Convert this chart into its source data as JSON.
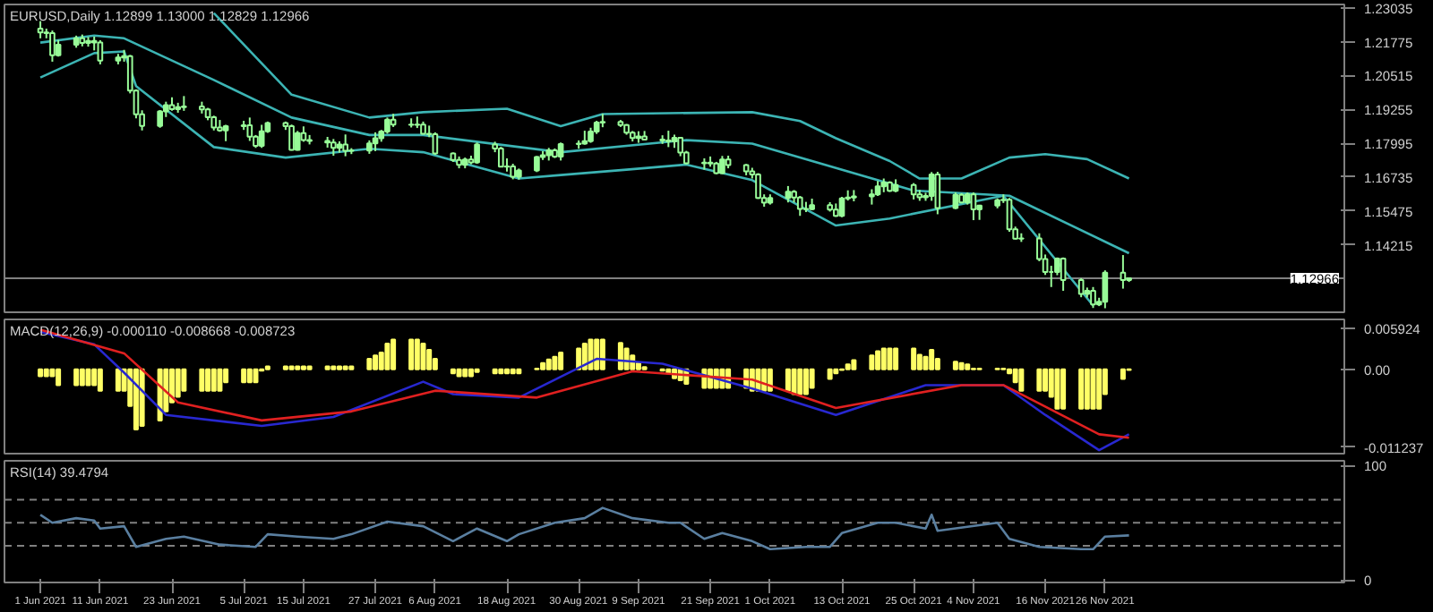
{
  "chart_data": [
    {
      "type": "candlestick",
      "title": "EURUSD,Daily 1.12899 1.13000 1.12829 1.12966",
      "color": "#98fb98",
      "xlim": [
        "2021-05-26",
        "2022-01-05"
      ],
      "ylim": [
        1.117,
        1.2316
      ],
      "yticks": [
        1.23035,
        1.21775,
        1.20515,
        1.19255,
        1.17995,
        1.16735,
        1.15475,
        1.14215
      ],
      "tick_labels": "y",
      "ref_lines": [
        {
          "axis": "y",
          "value": 1.12966,
          "label": "1.12966",
          "color": "#808080"
        }
      ],
      "x": [
        "2021-06-01",
        "2021-06-02",
        "2021-06-03",
        "2021-06-04",
        "2021-06-07",
        "2021-06-08",
        "2021-06-09",
        "2021-06-10",
        "2021-06-11",
        "2021-06-14",
        "2021-06-15",
        "2021-06-16",
        "2021-06-17",
        "2021-06-18",
        "2021-06-21",
        "2021-06-22",
        "2021-06-23",
        "2021-06-24",
        "2021-06-25",
        "2021-06-28",
        "2021-06-29",
        "2021-06-30",
        "2021-07-01",
        "2021-07-02",
        "2021-07-05",
        "2021-07-06",
        "2021-07-07",
        "2021-07-08",
        "2021-07-09",
        "2021-07-12",
        "2021-07-13",
        "2021-07-14",
        "2021-07-15",
        "2021-07-16",
        "2021-07-19",
        "2021-07-20",
        "2021-07-21",
        "2021-07-22",
        "2021-07-23",
        "2021-07-26",
        "2021-07-27",
        "2021-07-28",
        "2021-07-29",
        "2021-07-30",
        "2021-08-02",
        "2021-08-03",
        "2021-08-04",
        "2021-08-05",
        "2021-08-06",
        "2021-08-09",
        "2021-08-10",
        "2021-08-11",
        "2021-08-12",
        "2021-08-13",
        "2021-08-16",
        "2021-08-17",
        "2021-08-18",
        "2021-08-19",
        "2021-08-20",
        "2021-08-23",
        "2021-08-24",
        "2021-08-25",
        "2021-08-26",
        "2021-08-27",
        "2021-08-30",
        "2021-08-31",
        "2021-09-01",
        "2021-09-02",
        "2021-09-03",
        "2021-09-06",
        "2021-09-07",
        "2021-09-08",
        "2021-09-09",
        "2021-09-10",
        "2021-09-13",
        "2021-09-14",
        "2021-09-15",
        "2021-09-16",
        "2021-09-17",
        "2021-09-20",
        "2021-09-21",
        "2021-09-22",
        "2021-09-23",
        "2021-09-24",
        "2021-09-27",
        "2021-09-28",
        "2021-09-29",
        "2021-09-30",
        "2021-10-01",
        "2021-10-04",
        "2021-10-05",
        "2021-10-06",
        "2021-10-07",
        "2021-10-08",
        "2021-10-11",
        "2021-10-12",
        "2021-10-13",
        "2021-10-14",
        "2021-10-15",
        "2021-10-18",
        "2021-10-19",
        "2021-10-20",
        "2021-10-21",
        "2021-10-22",
        "2021-10-25",
        "2021-10-26",
        "2021-10-27",
        "2021-10-28",
        "2021-10-29",
        "2021-11-01",
        "2021-11-02",
        "2021-11-03",
        "2021-11-04",
        "2021-11-05",
        "2021-11-08",
        "2021-11-09",
        "2021-11-10",
        "2021-11-11",
        "2021-11-12",
        "2021-11-15",
        "2021-11-16",
        "2021-11-17",
        "2021-11-18",
        "2021-11-19",
        "2021-11-22",
        "2021-11-23",
        "2021-11-24",
        "2021-11-25",
        "2021-11-26",
        "2021-11-29",
        "2021-11-30"
      ],
      "ohlc": [
        [
          1.2226,
          1.2254,
          1.219,
          1.2212
        ],
        [
          1.2212,
          1.2226,
          1.219,
          1.2209
        ],
        [
          1.2209,
          1.2219,
          1.2103,
          1.2127
        ],
        [
          1.2127,
          1.2184,
          1.2122,
          1.2166
        ],
        [
          1.2166,
          1.22,
          1.2155,
          1.219
        ],
        [
          1.219,
          1.2204,
          1.216,
          1.2173
        ],
        [
          1.2173,
          1.2195,
          1.2159,
          1.218
        ],
        [
          1.218,
          1.2196,
          1.2145,
          1.2174
        ],
        [
          1.2174,
          1.2183,
          1.2093,
          1.2107
        ],
        [
          1.2107,
          1.2132,
          1.2093,
          1.2119
        ],
        [
          1.2119,
          1.2147,
          1.2103,
          1.2124
        ],
        [
          1.2124,
          1.2128,
          1.1985,
          1.1995
        ],
        [
          1.1995,
          1.2,
          1.1892,
          1.1907
        ],
        [
          1.1907,
          1.1922,
          1.1847,
          1.1864
        ],
        [
          1.1864,
          1.1923,
          1.1857,
          1.1918
        ],
        [
          1.1918,
          1.1954,
          1.1897,
          1.1941
        ],
        [
          1.1941,
          1.197,
          1.192,
          1.1926
        ],
        [
          1.1926,
          1.195,
          1.1913,
          1.1934
        ],
        [
          1.1934,
          1.1975,
          1.192,
          1.1936
        ],
        [
          1.1936,
          1.1954,
          1.191,
          1.1925
        ],
        [
          1.1925,
          1.1931,
          1.1885,
          1.1896
        ],
        [
          1.1896,
          1.1902,
          1.1847,
          1.1858
        ],
        [
          1.1858,
          1.1886,
          1.1842,
          1.1847
        ],
        [
          1.1847,
          1.1868,
          1.1807,
          1.1863
        ],
        [
          1.1863,
          1.1883,
          1.1849,
          1.1866
        ],
        [
          1.1866,
          1.1895,
          1.1808,
          1.1824
        ],
        [
          1.1824,
          1.183,
          1.1782,
          1.179
        ],
        [
          1.179,
          1.1868,
          1.1782,
          1.1844
        ],
        [
          1.1844,
          1.188,
          1.1838,
          1.1875
        ],
        [
          1.1875,
          1.188,
          1.1849,
          1.1863
        ],
        [
          1.1863,
          1.1869,
          1.1772,
          1.1775
        ],
        [
          1.1775,
          1.1845,
          1.1772,
          1.1837
        ],
        [
          1.1837,
          1.1862,
          1.1805,
          1.1811
        ],
        [
          1.1811,
          1.183,
          1.1795,
          1.1808
        ],
        [
          1.1808,
          1.1823,
          1.1783,
          1.1802
        ],
        [
          1.1802,
          1.1815,
          1.1753,
          1.1782
        ],
        [
          1.1782,
          1.1806,
          1.1765,
          1.1795
        ],
        [
          1.1795,
          1.1832,
          1.1751,
          1.1771
        ],
        [
          1.1771,
          1.1781,
          1.1759,
          1.1772
        ],
        [
          1.1772,
          1.181,
          1.176,
          1.1799
        ],
        [
          1.1799,
          1.184,
          1.177,
          1.1818
        ],
        [
          1.1818,
          1.1849,
          1.1805,
          1.1843
        ],
        [
          1.1843,
          1.1895,
          1.1835,
          1.1887
        ],
        [
          1.1887,
          1.1909,
          1.186,
          1.1869
        ],
        [
          1.1869,
          1.1892,
          1.1858,
          1.1868
        ],
        [
          1.1868,
          1.1899,
          1.1856,
          1.1869
        ],
        [
          1.1869,
          1.188,
          1.1832,
          1.1835
        ],
        [
          1.1835,
          1.1865,
          1.1822,
          1.1833
        ],
        [
          1.1833,
          1.184,
          1.1756,
          1.1761
        ],
        [
          1.1761,
          1.1765,
          1.173,
          1.1737
        ],
        [
          1.1737,
          1.175,
          1.1706,
          1.1719
        ],
        [
          1.1719,
          1.1746,
          1.1706,
          1.1739
        ],
        [
          1.1739,
          1.1753,
          1.1721,
          1.1728
        ],
        [
          1.1728,
          1.1802,
          1.1723,
          1.1795
        ],
        [
          1.1795,
          1.1805,
          1.1766,
          1.178
        ],
        [
          1.178,
          1.1786,
          1.171,
          1.1712
        ],
        [
          1.1712,
          1.1743,
          1.1694,
          1.1713
        ],
        [
          1.1713,
          1.1723,
          1.1665,
          1.1675
        ],
        [
          1.1675,
          1.1705,
          1.1664,
          1.1698
        ],
        [
          1.1698,
          1.1752,
          1.1692,
          1.1748
        ],
        [
          1.1748,
          1.177,
          1.1737,
          1.1755
        ],
        [
          1.1755,
          1.1782,
          1.1735,
          1.1773
        ],
        [
          1.1773,
          1.178,
          1.1744,
          1.175
        ],
        [
          1.175,
          1.1802,
          1.1735,
          1.1796
        ],
        [
          1.1796,
          1.181,
          1.1779,
          1.1798
        ],
        [
          1.1798,
          1.1846,
          1.1794,
          1.1807
        ],
        [
          1.1807,
          1.1857,
          1.1801,
          1.1843
        ],
        [
          1.1843,
          1.1883,
          1.1834,
          1.1876
        ],
        [
          1.1876,
          1.1909,
          1.1859,
          1.1879
        ],
        [
          1.1879,
          1.1886,
          1.186,
          1.1867
        ],
        [
          1.1867,
          1.1871,
          1.1831,
          1.1839
        ],
        [
          1.1839,
          1.1845,
          1.1806,
          1.1819
        ],
        [
          1.1819,
          1.1844,
          1.1801,
          1.1825
        ],
        [
          1.1825,
          1.1845,
          1.181,
          1.1813
        ],
        [
          1.1813,
          1.1829,
          1.1797,
          1.181
        ],
        [
          1.181,
          1.1846,
          1.1785,
          1.1806
        ],
        [
          1.1806,
          1.1831,
          1.1782,
          1.182
        ],
        [
          1.182,
          1.1823,
          1.1751,
          1.1765
        ],
        [
          1.1765,
          1.1771,
          1.1721,
          1.1725
        ],
        [
          1.1725,
          1.1743,
          1.1701,
          1.1727
        ],
        [
          1.1727,
          1.175,
          1.1712,
          1.1724
        ],
        [
          1.1724,
          1.173,
          1.1684,
          1.1688
        ],
        [
          1.1688,
          1.1752,
          1.1685,
          1.1739
        ],
        [
          1.1739,
          1.1753,
          1.1706,
          1.1718
        ],
        [
          1.1718,
          1.1722,
          1.168,
          1.1695
        ],
        [
          1.1695,
          1.1708,
          1.1668,
          1.1683
        ],
        [
          1.1683,
          1.1688,
          1.1592,
          1.1596
        ],
        [
          1.1596,
          1.1609,
          1.1563,
          1.1578
        ],
        [
          1.1578,
          1.1609,
          1.1571,
          1.1596
        ],
        [
          1.1596,
          1.164,
          1.1579,
          1.1619
        ],
        [
          1.1619,
          1.1625,
          1.1579,
          1.1597
        ],
        [
          1.1597,
          1.1603,
          1.1529,
          1.1555
        ],
        [
          1.1555,
          1.1581,
          1.1543,
          1.1554
        ],
        [
          1.1554,
          1.1593,
          1.155,
          1.1569
        ],
        [
          1.1569,
          1.158,
          1.1545,
          1.1552
        ],
        [
          1.1552,
          1.1575,
          1.1525,
          1.1529
        ],
        [
          1.1529,
          1.16,
          1.1524,
          1.1594
        ],
        [
          1.1594,
          1.1624,
          1.1586,
          1.1597
        ],
        [
          1.1597,
          1.1625,
          1.1583,
          1.1601
        ],
        [
          1.1601,
          1.1628,
          1.1571,
          1.1609
        ],
        [
          1.1609,
          1.1659,
          1.1603,
          1.1639
        ],
        [
          1.1639,
          1.1668,
          1.1617,
          1.1653
        ],
        [
          1.1653,
          1.1658,
          1.1618,
          1.1622
        ],
        [
          1.1622,
          1.1665,
          1.1617,
          1.1644
        ],
        [
          1.1644,
          1.1651,
          1.159,
          1.1609
        ],
        [
          1.1609,
          1.1625,
          1.1585,
          1.1598
        ],
        [
          1.1598,
          1.1615,
          1.1585,
          1.1603
        ],
        [
          1.1603,
          1.1692,
          1.1585,
          1.1683
        ],
        [
          1.1683,
          1.1693,
          1.1535,
          1.1558
        ],
        [
          1.1558,
          1.1616,
          1.1554,
          1.1607
        ],
        [
          1.1607,
          1.1613,
          1.1576,
          1.1579
        ],
        [
          1.1579,
          1.1616,
          1.1571,
          1.1609
        ],
        [
          1.1609,
          1.1616,
          1.1513,
          1.1553
        ],
        [
          1.1553,
          1.157,
          1.1514,
          1.1567
        ],
        [
          1.1567,
          1.1594,
          1.1557,
          1.1587
        ],
        [
          1.1587,
          1.1609,
          1.1577,
          1.1589
        ],
        [
          1.1589,
          1.1596,
          1.147,
          1.1479
        ],
        [
          1.1479,
          1.1489,
          1.1441,
          1.1444
        ],
        [
          1.1444,
          1.1464,
          1.1432,
          1.1445
        ],
        [
          1.1445,
          1.1464,
          1.136,
          1.1368
        ],
        [
          1.1368,
          1.1385,
          1.1309,
          1.132
        ],
        [
          1.132,
          1.1343,
          1.1264,
          1.132
        ],
        [
          1.132,
          1.1374,
          1.1308,
          1.137
        ],
        [
          1.137,
          1.1374,
          1.125,
          1.129
        ],
        [
          1.129,
          1.1297,
          1.1226,
          1.1238
        ],
        [
          1.1238,
          1.1262,
          1.1225,
          1.125
        ],
        [
          1.125,
          1.1264,
          1.1186,
          1.1199
        ],
        [
          1.1199,
          1.1224,
          1.1193,
          1.1209
        ],
        [
          1.1209,
          1.1326,
          1.1185,
          1.1317
        ],
        [
          1.1317,
          1.1383,
          1.1258,
          1.129
        ],
        [
          1.12899,
          1.13,
          1.12829,
          1.12966
        ]
      ],
      "series": [
        {
          "type": "line",
          "color": "#3cb4b4",
          "x": [
            "2021-06-30",
            "2021-07-13",
            "2021-07-26",
            "2021-08-04",
            "2021-08-18",
            "2021-08-27",
            "2021-09-03",
            "2021-09-28",
            "2021-10-06",
            "2021-10-12",
            "2021-10-21",
            "2021-10-26",
            "2021-11-02",
            "2021-11-10",
            "2021-11-16",
            "2021-11-23",
            "2021-11-30"
          ],
          "values": [
            1.2284,
            1.198,
            1.1895,
            1.1915,
            1.1928,
            1.1863,
            1.1908,
            1.1915,
            1.1882,
            1.1818,
            1.1733,
            1.1668,
            1.1668,
            1.1746,
            1.1759,
            1.174,
            1.1668
          ]
        },
        {
          "type": "line",
          "color": "#3cb4b4",
          "x": [
            "2021-06-01",
            "2021-06-10",
            "2021-06-15",
            "2021-06-30",
            "2021-07-13",
            "2021-07-26",
            "2021-08-04",
            "2021-08-27",
            "2021-09-17",
            "2021-09-28",
            "2021-10-25",
            "2021-11-10",
            "2021-11-30"
          ],
          "values": [
            1.2174,
            1.22,
            1.219,
            1.2035,
            1.1895,
            1.183,
            1.183,
            1.1766,
            1.1811,
            1.1798,
            1.1623,
            1.1604,
            1.139
          ]
        },
        {
          "type": "line",
          "color": "#3cb4b4",
          "x": [
            "2021-06-01",
            "2021-06-10",
            "2021-06-15",
            "2021-06-17",
            "2021-06-30",
            "2021-07-12",
            "2021-07-26",
            "2021-08-04",
            "2021-08-20",
            "2021-08-27",
            "2021-09-07",
            "2021-09-17",
            "2021-09-28",
            "2021-10-12",
            "2021-10-21",
            "2021-11-09",
            "2021-11-24"
          ],
          "values": [
            1.2044,
            1.2135,
            1.2141,
            1.2012,
            1.1785,
            1.1746,
            1.1779,
            1.1766,
            1.1668,
            1.1681,
            1.1701,
            1.172,
            1.1662,
            1.1493,
            1.1519,
            1.1604,
            1.1195
          ]
        }
      ]
    },
    {
      "type": "bar",
      "title": "MACD(12,26,9) -0.000110 -0.008668 -0.008723",
      "xlim": [
        "2021-05-26",
        "2022-01-05"
      ],
      "ylim": [
        -0.0122,
        0.0072
      ],
      "yticks": [
        0.005924,
        {
          "value": 0,
          "label": "0.00"
        },
        -0.011237
      ],
      "tick_labels": "y",
      "x": [
        "2021-06-01",
        "2021-06-02",
        "2021-06-03",
        "2021-06-04",
        "2021-06-07",
        "2021-06-08",
        "2021-06-09",
        "2021-06-10",
        "2021-06-11",
        "2021-06-14",
        "2021-06-15",
        "2021-06-16",
        "2021-06-17",
        "2021-06-18",
        "2021-06-21",
        "2021-06-22",
        "2021-06-23",
        "2021-06-24",
        "2021-06-25",
        "2021-06-28",
        "2021-06-29",
        "2021-06-30",
        "2021-07-01",
        "2021-07-02",
        "2021-07-05",
        "2021-07-06",
        "2021-07-07",
        "2021-07-08",
        "2021-07-09",
        "2021-07-12",
        "2021-07-13",
        "2021-07-14",
        "2021-07-15",
        "2021-07-16",
        "2021-07-19",
        "2021-07-20",
        "2021-07-21",
        "2021-07-22",
        "2021-07-23",
        "2021-07-26",
        "2021-07-27",
        "2021-07-28",
        "2021-07-29",
        "2021-07-30",
        "2021-08-02",
        "2021-08-03",
        "2021-08-04",
        "2021-08-05",
        "2021-08-06",
        "2021-08-09",
        "2021-08-10",
        "2021-08-11",
        "2021-08-12",
        "2021-08-13",
        "2021-08-16",
        "2021-08-17",
        "2021-08-18",
        "2021-08-19",
        "2021-08-20",
        "2021-08-23",
        "2021-08-24",
        "2021-08-25",
        "2021-08-26",
        "2021-08-27",
        "2021-08-30",
        "2021-08-31",
        "2021-09-01",
        "2021-09-02",
        "2021-09-03",
        "2021-09-06",
        "2021-09-07",
        "2021-09-08",
        "2021-09-09",
        "2021-09-10",
        "2021-09-13",
        "2021-09-14",
        "2021-09-15",
        "2021-09-16",
        "2021-09-17",
        "2021-09-20",
        "2021-09-21",
        "2021-09-22",
        "2021-09-23",
        "2021-09-24",
        "2021-09-27",
        "2021-09-28",
        "2021-09-29",
        "2021-09-30",
        "2021-10-01",
        "2021-10-04",
        "2021-10-05",
        "2021-10-06",
        "2021-10-07",
        "2021-10-08",
        "2021-10-11",
        "2021-10-12",
        "2021-10-13",
        "2021-10-14",
        "2021-10-15",
        "2021-10-18",
        "2021-10-19",
        "2021-10-20",
        "2021-10-21",
        "2021-10-22",
        "2021-10-25",
        "2021-10-26",
        "2021-10-27",
        "2021-10-28",
        "2021-10-29",
        "2021-11-01",
        "2021-11-02",
        "2021-11-03",
        "2021-11-04",
        "2021-11-05",
        "2021-11-08",
        "2021-11-09",
        "2021-11-10",
        "2021-11-11",
        "2021-11-12",
        "2021-11-15",
        "2021-11-16",
        "2021-11-17",
        "2021-11-18",
        "2021-11-19",
        "2021-11-22",
        "2021-11-23",
        "2021-11-24",
        "2021-11-25",
        "2021-11-26",
        "2021-11-29",
        "2021-11-30"
      ],
      "series": [
        {
          "type": "bar",
          "color": "#ffff66",
          "values": [
            -0.001,
            -0.001,
            -0.001,
            -0.0023,
            -0.0023,
            -0.0023,
            -0.0023,
            -0.0023,
            -0.0031,
            -0.0031,
            -0.0031,
            -0.0053,
            -0.0087,
            -0.0082,
            -0.0074,
            -0.0061,
            -0.0048,
            -0.004,
            -0.0031,
            -0.0031,
            -0.0031,
            -0.0031,
            -0.0031,
            -0.0019,
            -0.0019,
            -0.0019,
            -0.0019,
            -0.0002,
            0.0004,
            0.0004,
            0.0004,
            0.0004,
            0.0004,
            0.0004,
            0.0004,
            0.0004,
            0.0004,
            0.0004,
            0.0004,
            0.0015,
            0.002,
            0.0024,
            0.0037,
            0.0043,
            0.0043,
            0.0043,
            0.0037,
            0.0028,
            0.0015,
            -0.0006,
            -0.001,
            -0.001,
            -0.001,
            -0.0004,
            -0.0006,
            -0.0006,
            -0.0006,
            -0.0006,
            -0.0006,
            0.0001,
            0.0009,
            0.0014,
            0.0018,
            0.0024,
            0.003,
            0.0037,
            0.0043,
            0.0043,
            0.0043,
            0.0038,
            0.003,
            0.002,
            0.0009,
            0.0003,
            -0.0002,
            -0.0006,
            -0.0013,
            -0.0016,
            -0.0021,
            -0.0027,
            -0.0027,
            -0.0027,
            -0.0027,
            -0.0027,
            -0.0027,
            -0.0031,
            -0.0031,
            -0.0031,
            -0.0031,
            -0.0031,
            -0.0036,
            -0.0036,
            -0.0036,
            -0.0027,
            -0.0014,
            -0.0006,
            -0.0001,
            0.0007,
            0.0013,
            0.002,
            0.0026,
            0.003,
            0.003,
            0.003,
            0.003,
            0.0021,
            0.0018,
            0.0028,
            0.0015,
            0.0011,
            0.0009,
            0.0007,
            0.0001,
            0.0001,
            0.0001,
            0.0001,
            -0.0006,
            -0.0019,
            -0.0031,
            -0.0031,
            -0.0031,
            -0.004,
            -0.0057,
            -0.0057,
            -0.0057,
            -0.0057,
            -0.0057,
            -0.0057,
            -0.0036,
            -0.0014,
            -0.0001
          ]
        },
        {
          "type": "line",
          "color": "#2828d0",
          "x": [
            "2021-06-01",
            "2021-06-10",
            "2021-06-15",
            "2021-06-22",
            "2021-07-08",
            "2021-07-20",
            "2021-08-04",
            "2021-08-09",
            "2021-08-20",
            "2021-09-02",
            "2021-09-13",
            "2021-09-28",
            "2021-10-12",
            "2021-10-27",
            "2021-11-09",
            "2021-11-16",
            "2021-11-25",
            "2021-11-30"
          ],
          "values": [
            0.0054,
            0.0036,
            -0.0005,
            -0.0066,
            -0.0082,
            -0.0069,
            -0.0018,
            -0.0036,
            -0.0041,
            0.0015,
            0.0008,
            -0.0028,
            -0.0066,
            -0.0023,
            -0.0023,
            -0.0066,
            -0.0117,
            -0.0094
          ]
        },
        {
          "type": "line",
          "color": "#e02020",
          "x": [
            "2021-06-01",
            "2021-06-15",
            "2021-06-24",
            "2021-07-08",
            "2021-07-23",
            "2021-08-06",
            "2021-08-23",
            "2021-09-08",
            "2021-09-28",
            "2021-10-12",
            "2021-11-02",
            "2021-11-09",
            "2021-11-25",
            "2021-11-30"
          ],
          "values": [
            0.0057,
            0.0023,
            -0.0048,
            -0.0074,
            -0.0061,
            -0.0031,
            -0.0041,
            -0.0003,
            -0.0015,
            -0.0056,
            -0.0023,
            -0.0023,
            -0.0094,
            -0.0099
          ]
        }
      ]
    },
    {
      "type": "line",
      "title": "RSI(14) 39.4794",
      "xlim": [
        "2021-05-26",
        "2022-01-05"
      ],
      "ylim": [
        -2,
        104
      ],
      "yticks": [
        0,
        100
      ],
      "xticks": [
        {
          "value": "2021-06-01",
          "label": "1 Jun 2021"
        },
        {
          "value": "2021-06-11",
          "label": "11 Jun 2021"
        },
        {
          "value": "2021-06-23",
          "label": "23 Jun 2021"
        },
        {
          "value": "2021-07-05",
          "label": "5 Jul 2021"
        },
        {
          "value": "2021-07-15",
          "label": "15 Jul 2021"
        },
        {
          "value": "2021-07-27",
          "label": "27 Jul 2021"
        },
        {
          "value": "2021-08-06",
          "label": "6 Aug 2021"
        },
        {
          "value": "2021-08-18",
          "label": "18 Aug 2021"
        },
        {
          "value": "2021-08-30",
          "label": "30 Aug 2021"
        },
        {
          "value": "2021-09-09",
          "label": "9 Sep 2021"
        },
        {
          "value": "2021-09-21",
          "label": "21 Sep 2021"
        },
        {
          "value": "2021-10-01",
          "label": "1 Oct 2021"
        },
        {
          "value": "2021-10-13",
          "label": "13 Oct 2021"
        },
        {
          "value": "2021-10-25",
          "label": "25 Oct 2021"
        },
        {
          "value": "2021-11-04",
          "label": "4 Nov 2021"
        },
        {
          "value": "2021-11-16",
          "label": "16 Nov 2021"
        },
        {
          "value": "2021-11-26",
          "label": "26 Nov 2021"
        }
      ],
      "ref_lines": [
        {
          "axis": "y",
          "value": 70,
          "color": "#808080",
          "line_style": "dashed"
        },
        {
          "axis": "y",
          "value": 50,
          "color": "#808080",
          "line_style": "dashed"
        },
        {
          "axis": "y",
          "value": 30,
          "color": "#808080",
          "line_style": "dashed"
        }
      ],
      "series": [
        {
          "color": "#5a7fa0",
          "x": [
            "2021-06-01",
            "2021-06-03",
            "2021-06-07",
            "2021-06-10",
            "2021-06-11",
            "2021-06-15",
            "2021-06-17",
            "2021-06-22",
            "2021-06-25",
            "2021-07-01",
            "2021-07-07",
            "2021-07-09",
            "2021-07-14",
            "2021-07-20",
            "2021-07-23",
            "2021-07-29",
            "2021-08-04",
            "2021-08-09",
            "2021-08-13",
            "2021-08-18",
            "2021-08-20",
            "2021-08-26",
            "2021-08-31",
            "2021-09-03",
            "2021-09-08",
            "2021-09-14",
            "2021-09-16",
            "2021-09-20",
            "2021-09-23",
            "2021-09-28",
            "2021-10-01",
            "2021-10-07",
            "2021-10-11",
            "2021-10-13",
            "2021-10-19",
            "2021-10-22",
            "2021-10-27",
            "2021-10-28",
            "2021-10-29",
            "2021-11-08",
            "2021-11-10",
            "2021-11-15",
            "2021-11-22",
            "2021-11-24",
            "2021-11-26",
            "2021-11-30"
          ],
          "values": [
            57,
            50,
            54,
            52,
            45,
            47,
            29,
            36,
            38,
            31,
            29,
            40,
            38,
            36,
            40,
            51,
            47,
            34,
            45,
            34,
            40,
            50,
            54,
            63,
            54,
            50,
            50,
            36,
            41,
            34,
            27,
            29,
            29,
            41,
            50,
            50,
            45,
            57,
            43,
            50,
            36,
            29,
            27,
            27,
            38,
            39
          ]
        }
      ]
    }
  ]
}
